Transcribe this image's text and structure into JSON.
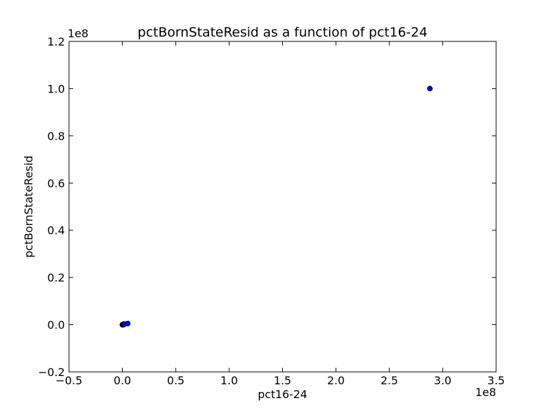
{
  "chart_data": {
    "type": "scatter",
    "title": "pctBornStateResid as a function of pct16-24",
    "xlabel": "pct16-24",
    "ylabel": "pctBornStateResid",
    "x_multiplier_label": "1e8",
    "y_multiplier_label": "1e8",
    "xlim": [
      -0.5,
      3.5
    ],
    "ylim": [
      -0.2,
      1.2
    ],
    "x_ticks": [
      -0.5,
      0.0,
      0.5,
      1.0,
      1.5,
      2.0,
      2.5,
      3.0,
      3.5
    ],
    "y_ticks": [
      -0.2,
      0.0,
      0.2,
      0.4,
      0.6,
      0.8,
      1.0,
      1.2
    ],
    "x_tick_labels": [
      "−0.5",
      "0.0",
      "0.5",
      "1.0",
      "1.5",
      "2.0",
      "2.5",
      "3.0",
      "3.5"
    ],
    "y_tick_labels": [
      "−0.2",
      "0.0",
      "0.2",
      "0.4",
      "0.6",
      "0.8",
      "1.0",
      "1.2"
    ],
    "grid": false,
    "marker_color": "#0000ff",
    "marker_edge_color": "#000000",
    "points": [
      {
        "x": 0.0,
        "y": 0.0
      },
      {
        "x": 0.002,
        "y": 0.0005
      },
      {
        "x": 0.004,
        "y": -0.0005
      },
      {
        "x": 0.006,
        "y": 0.001
      },
      {
        "x": 0.008,
        "y": 0.0
      },
      {
        "x": 0.01,
        "y": 0.002
      },
      {
        "x": 0.012,
        "y": 0.0015
      },
      {
        "x": 0.015,
        "y": 0.003
      },
      {
        "x": 0.018,
        "y": 0.002
      },
      {
        "x": 0.05,
        "y": 0.005
      },
      {
        "x": 2.88,
        "y": 1.0
      }
    ]
  }
}
